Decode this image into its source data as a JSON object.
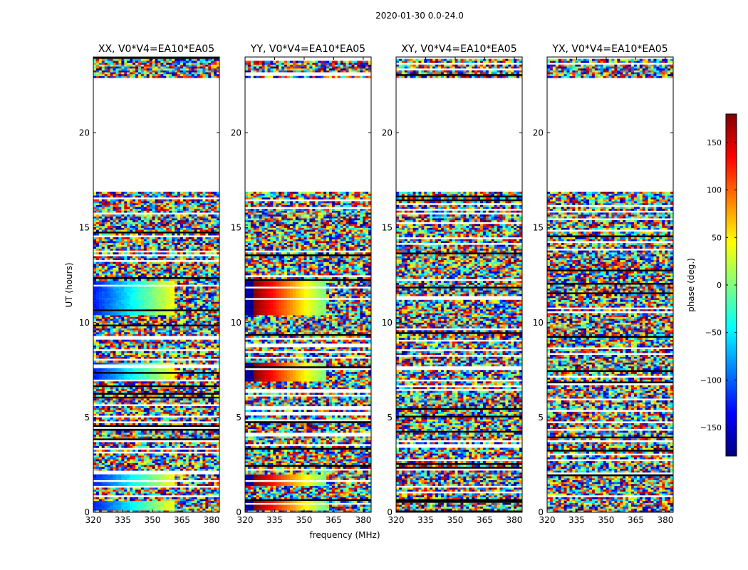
{
  "figure": {
    "suptitle": "2020-01-30 0.0-24.0",
    "xlabel": "frequency (MHz)",
    "ylabel": "UT (hours)"
  },
  "colorbar": {
    "label": "phase (deg.)",
    "range": [
      -180,
      180
    ],
    "ticks": [
      -150,
      -100,
      -50,
      0,
      50,
      100,
      150
    ],
    "tick_labels": [
      "−150",
      "−100",
      "−50",
      "0",
      "50",
      "100",
      "150"
    ],
    "colormap": [
      "#00007f",
      "#0000ff",
      "#007fff",
      "#00ffff",
      "#7fff7f",
      "#ffff00",
      "#ff7f00",
      "#ff0000",
      "#7f0000"
    ]
  },
  "chart_data": {
    "type": "heatmap",
    "value_name": "phase (deg.)",
    "xlim": [
      320,
      384
    ],
    "ylim": [
      0,
      24
    ],
    "xticks": [
      320,
      335,
      350,
      365,
      380
    ],
    "yticks": [
      0,
      5,
      10,
      15,
      20
    ],
    "ytick_labels": [
      "0",
      "5",
      "10",
      "15",
      "20"
    ],
    "data_gap_hours": [
      [
        16.9,
        22.9
      ]
    ],
    "panels": [
      {
        "title": "XX, V0*V4=EA10*EA05",
        "polarization": "XX",
        "baseline": "V0*V4=EA10*EA05",
        "coherent_ut_ranges": [
          [
            10.4,
            12.2
          ],
          [
            6.9,
            7.9
          ],
          [
            1.4,
            2.0
          ],
          [
            0.1,
            0.6
          ]
        ]
      },
      {
        "title": "YY, V0*V4=EA10*EA05",
        "polarization": "YY",
        "baseline": "V0*V4=EA10*EA05",
        "coherent_ut_ranges": [
          [
            10.4,
            12.2
          ],
          [
            6.9,
            7.9
          ],
          [
            1.4,
            2.0
          ],
          [
            0.1,
            0.6
          ]
        ]
      },
      {
        "title": "XY, V0*V4=EA10*EA05",
        "polarization": "XY",
        "baseline": "V0*V4=EA10*EA05",
        "coherent_ut_ranges": []
      },
      {
        "title": "YX, V0*V4=EA10*EA05",
        "polarization": "YX",
        "baseline": "V0*V4=EA10*EA05",
        "coherent_ut_ranges": []
      }
    ]
  }
}
